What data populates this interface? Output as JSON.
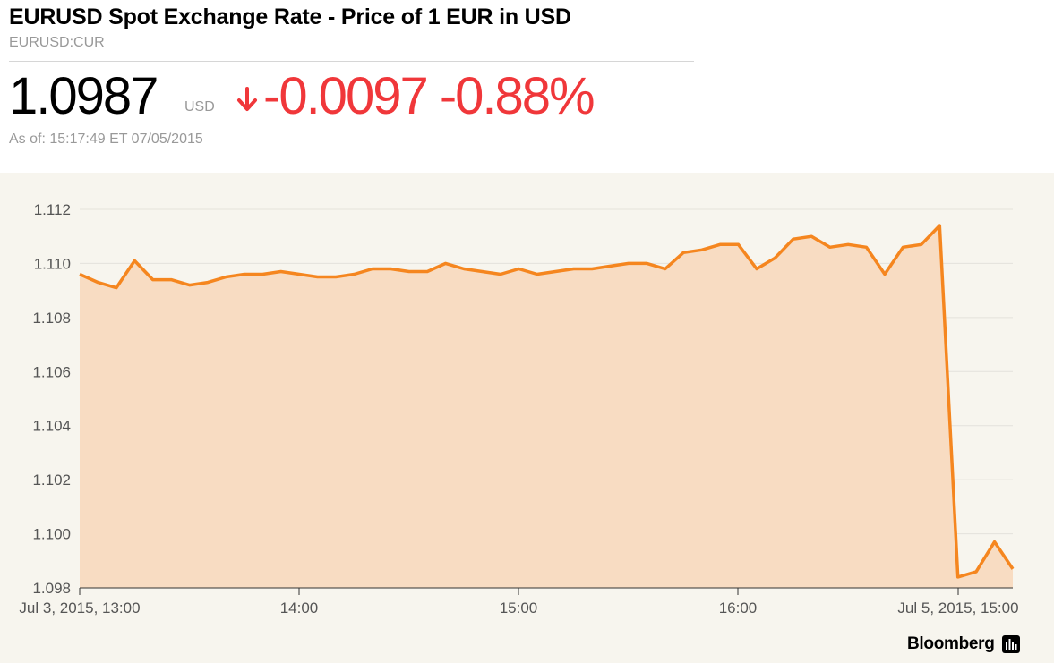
{
  "header": {
    "title": "EURUSD Spot Exchange Rate - Price of 1 EUR in USD",
    "ticker": "EURUSD:CUR",
    "price": "1.0987",
    "currency": "USD",
    "change": "-0.0097 -0.88%",
    "as_of": "As of: 15:17:49 ET 07/05/2015"
  },
  "brand": {
    "name": "Bloomberg",
    "icon": "bar-chart-icon"
  },
  "colors": {
    "line": "#f5861f",
    "fill": "#f8dcc2",
    "down": "#f0373a",
    "background": "#f7f5ee"
  },
  "chart_data": {
    "type": "area",
    "title": "",
    "xlabel": "",
    "ylabel": "",
    "ylim": [
      1.098,
      1.112
    ],
    "grid": true,
    "y_ticks": [
      "1.098",
      "1.100",
      "1.102",
      "1.104",
      "1.106",
      "1.108",
      "1.110",
      "1.112"
    ],
    "x_ticks": [
      "Jul 3, 2015, 13:00",
      "14:00",
      "15:00",
      "16:00",
      "Jul 5, 2015, 15:00"
    ],
    "series": [
      {
        "values": [
          1.1096,
          1.1093,
          1.1091,
          1.1101,
          1.1094,
          1.1094,
          1.1092,
          1.1093,
          1.1095,
          1.1096,
          1.1096,
          1.1097,
          1.1096,
          1.1095,
          1.1095,
          1.1096,
          1.1098,
          1.1098,
          1.1097,
          1.1097,
          1.11,
          1.1098,
          1.1097,
          1.1096,
          1.1098,
          1.1096,
          1.1097,
          1.1098,
          1.1098,
          1.1099,
          1.11,
          1.11,
          1.1098,
          1.1104,
          1.1105,
          1.1107,
          1.1107,
          1.1098,
          1.1102,
          1.1109,
          1.111,
          1.1106,
          1.1107,
          1.1106,
          1.1096,
          1.1106,
          1.1107,
          1.1114,
          1.0984,
          1.0986,
          1.0997,
          1.0987
        ]
      }
    ]
  }
}
